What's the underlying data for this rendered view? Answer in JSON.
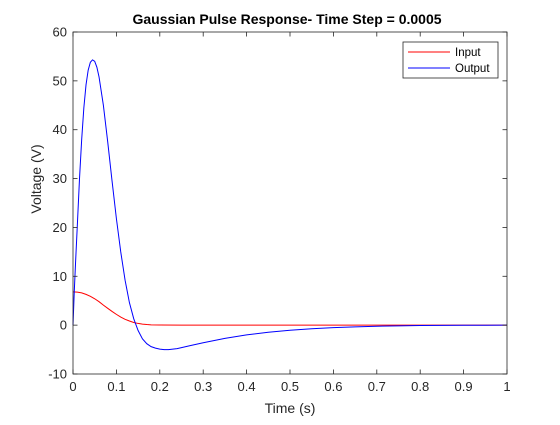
{
  "chart_data": {
    "type": "line",
    "title": "Gaussian Pulse Response- Time Step = 0.0005",
    "xlabel": "Time (s)",
    "ylabel": "Voltage (V)",
    "xlim": [
      0,
      1
    ],
    "ylim": [
      -10,
      60
    ],
    "x_ticks": [
      0,
      0.1,
      0.2,
      0.3,
      0.4,
      0.5,
      0.6,
      0.7,
      0.8,
      0.9,
      1
    ],
    "x_tick_labels": [
      "0",
      "0.1",
      "0.2",
      "0.3",
      "0.4",
      "0.5",
      "0.6",
      "0.7",
      "0.8",
      "0.9",
      "1"
    ],
    "y_ticks": [
      -10,
      0,
      10,
      20,
      30,
      40,
      50,
      60
    ],
    "y_tick_labels": [
      "-10",
      "0",
      "10",
      "20",
      "30",
      "40",
      "50",
      "60"
    ],
    "grid": false,
    "legend_position": "top-right",
    "series": [
      {
        "name": "Input",
        "color": "#ff0000",
        "x": [
          0,
          0.01,
          0.02,
          0.03,
          0.04,
          0.05,
          0.06,
          0.07,
          0.08,
          0.09,
          0.1,
          0.11,
          0.12,
          0.13,
          0.14,
          0.15,
          0.16,
          0.17,
          0.18,
          0.2,
          0.25,
          0.3,
          0.4,
          0.5,
          0.6,
          0.7,
          0.8,
          0.9,
          1.0
        ],
        "y": [
          6.8,
          6.75,
          6.6,
          6.3,
          5.9,
          5.4,
          4.8,
          4.1,
          3.45,
          2.8,
          2.2,
          1.65,
          1.2,
          0.85,
          0.55,
          0.35,
          0.2,
          0.12,
          0.06,
          0.02,
          0.0,
          0.0,
          0.0,
          0.0,
          0.0,
          0.0,
          0.0,
          0.0,
          0.0
        ]
      },
      {
        "name": "Output",
        "color": "#0000ff",
        "x": [
          0,
          0.003,
          0.006,
          0.01,
          0.015,
          0.02,
          0.025,
          0.03,
          0.035,
          0.04,
          0.045,
          0.05,
          0.055,
          0.06,
          0.07,
          0.08,
          0.09,
          0.1,
          0.11,
          0.12,
          0.13,
          0.14,
          0.15,
          0.16,
          0.17,
          0.18,
          0.19,
          0.2,
          0.21,
          0.22,
          0.23,
          0.24,
          0.25,
          0.27,
          0.3,
          0.35,
          0.4,
          0.45,
          0.5,
          0.55,
          0.6,
          0.65,
          0.7,
          0.75,
          0.8,
          0.85,
          0.9,
          0.95,
          1.0
        ],
        "y": [
          0,
          7.0,
          13.0,
          20.5,
          30.0,
          38.0,
          44.5,
          49.2,
          52.2,
          53.8,
          54.3,
          54.0,
          52.8,
          50.8,
          45.0,
          37.5,
          29.5,
          21.8,
          15.0,
          9.2,
          4.6,
          1.3,
          -1.1,
          -2.8,
          -3.8,
          -4.4,
          -4.7,
          -4.9,
          -5.0,
          -5.0,
          -4.9,
          -4.8,
          -4.6,
          -4.2,
          -3.6,
          -2.7,
          -2.0,
          -1.45,
          -1.05,
          -0.75,
          -0.5,
          -0.35,
          -0.22,
          -0.15,
          -0.08,
          -0.05,
          -0.02,
          -0.01,
          0.0
        ]
      }
    ]
  }
}
